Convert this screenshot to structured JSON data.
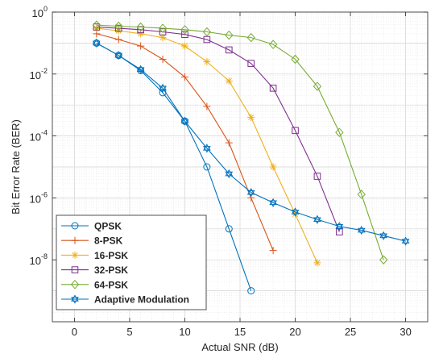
{
  "chart_data": {
    "type": "line",
    "xlabel": "Actual SNR (dB)",
    "ylabel": "Bit Error Rate (BER)",
    "xlim": [
      -2,
      32
    ],
    "ylim": [
      1e-10,
      1
    ],
    "yscale": "log",
    "grid": true,
    "legend_position": "bottom-left",
    "x_ticks": [
      0,
      5,
      10,
      15,
      20,
      25,
      30
    ],
    "x_tick_labels": [
      "0",
      "5",
      "10",
      "15",
      "20",
      "25",
      "30"
    ],
    "y_ticks": [
      1,
      0.01,
      0.0001,
      1e-06,
      1e-08
    ],
    "y_tick_labels": [
      {
        "base": "10",
        "exp": "0"
      },
      {
        "base": "10",
        "exp": "-2"
      },
      {
        "base": "10",
        "exp": "-4"
      },
      {
        "base": "10",
        "exp": "-6"
      },
      {
        "base": "10",
        "exp": "-8"
      }
    ],
    "series": [
      {
        "name": "QPSK",
        "color": "#0072BD",
        "marker": "circle",
        "x": [
          2,
          4,
          6,
          8,
          10,
          12,
          14,
          16
        ],
        "y": [
          0.1,
          0.04,
          0.013,
          0.0025,
          0.0003,
          1e-05,
          1e-07,
          1e-09
        ]
      },
      {
        "name": "8-PSK",
        "color": "#D95319",
        "marker": "plus",
        "x": [
          2,
          4,
          6,
          8,
          10,
          12,
          14,
          16,
          18
        ],
        "y": [
          0.2,
          0.13,
          0.08,
          0.03,
          0.008,
          0.0009,
          6e-05,
          1e-06,
          2e-08
        ]
      },
      {
        "name": "16-PSK",
        "color": "#EDB120",
        "marker": "asterisk",
        "x": [
          2,
          4,
          6,
          8,
          10,
          12,
          14,
          16,
          18,
          20,
          22
        ],
        "y": [
          0.3,
          0.25,
          0.2,
          0.15,
          0.08,
          0.025,
          0.006,
          0.0004,
          1e-05,
          3e-07,
          8e-09
        ]
      },
      {
        "name": "32-PSK",
        "color": "#7E2F8E",
        "marker": "square",
        "x": [
          2,
          4,
          6,
          8,
          10,
          12,
          14,
          16,
          18,
          20,
          22,
          24
        ],
        "y": [
          0.33,
          0.3,
          0.27,
          0.23,
          0.19,
          0.13,
          0.06,
          0.022,
          0.0035,
          0.00015,
          5e-06,
          8e-08
        ]
      },
      {
        "name": "64-PSK",
        "color": "#77AC30",
        "marker": "diamond",
        "x": [
          2,
          4,
          6,
          8,
          10,
          12,
          14,
          16,
          18,
          20,
          22,
          24,
          26,
          28
        ],
        "y": [
          0.38,
          0.35,
          0.33,
          0.3,
          0.27,
          0.23,
          0.18,
          0.15,
          0.09,
          0.03,
          0.004,
          0.00013,
          1.3e-06,
          1e-08
        ]
      },
      {
        "name": "Adaptive Modulation",
        "color": "#0072BD",
        "marker": "hexagram",
        "x": [
          2,
          4,
          6,
          8,
          10,
          12,
          14,
          16,
          18,
          20,
          22,
          24,
          26,
          28,
          30
        ],
        "y": [
          0.1,
          0.04,
          0.014,
          0.0035,
          0.0003,
          4e-05,
          6e-06,
          1.5e-06,
          7e-07,
          3.5e-07,
          2e-07,
          1.2e-07,
          9e-08,
          6e-08,
          4e-08
        ]
      }
    ]
  }
}
